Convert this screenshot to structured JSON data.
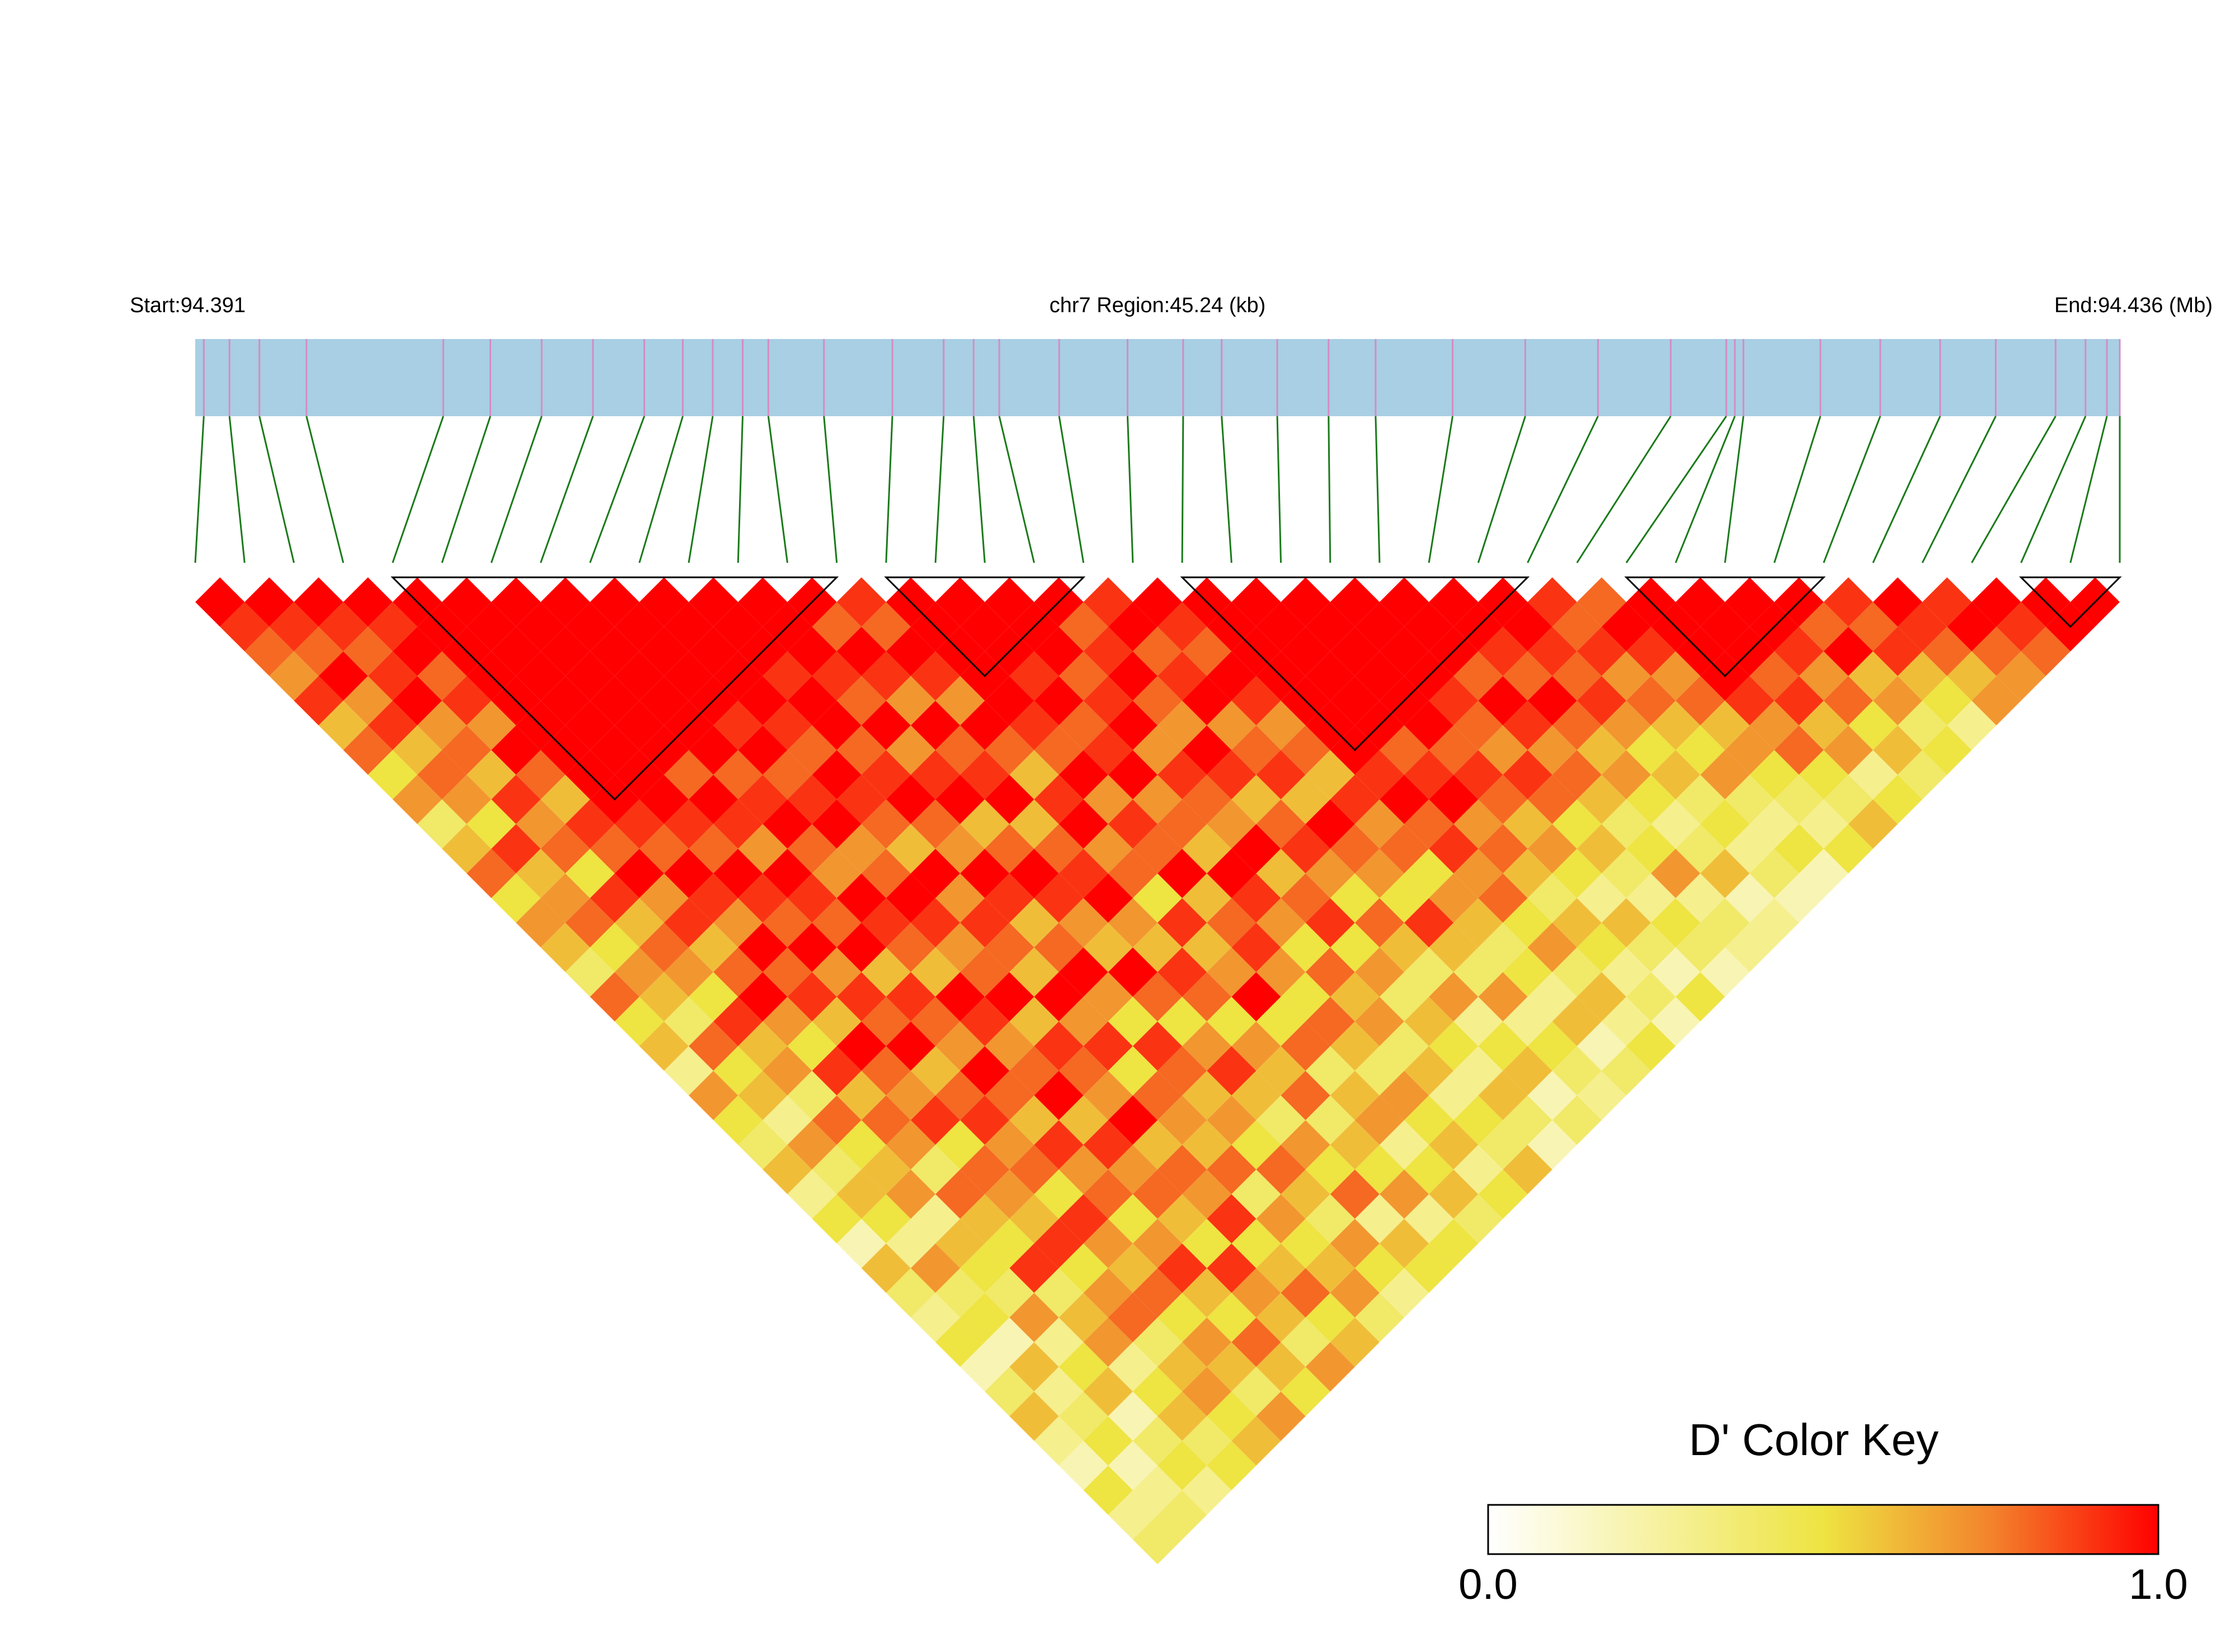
{
  "chart_data": {
    "type": "ld_heatmap",
    "start_label": "Start:94.391",
    "region_label": "chr7 Region:45.24 (kb)",
    "end_label": "End:94.436 (Mb)",
    "xlim": [
      94.391,
      94.436
    ],
    "bar_color": "#a8cfe3",
    "snp_color": "#d48cc4",
    "connector_color": "#1a7a1a",
    "snp_positions": [
      94.3912,
      94.3918,
      94.3925,
      94.3936,
      94.3968,
      94.3979,
      94.3991,
      94.4003,
      94.4015,
      94.4024,
      94.4031,
      94.4038,
      94.4044,
      94.4057,
      94.4073,
      94.4085,
      94.4092,
      94.4098,
      94.4112,
      94.4128,
      94.4141,
      94.415,
      94.4163,
      94.4175,
      94.4186,
      94.4204,
      94.4221,
      94.4238,
      94.4255,
      94.4268,
      94.427,
      94.4272,
      94.429,
      94.4304,
      94.4318,
      94.4331,
      94.4345,
      94.4352,
      94.4357,
      94.436
    ],
    "ld": [
      [
        1,
        0.9,
        0.8,
        0.7,
        0.9,
        0.6,
        0.8,
        0.5,
        0.7,
        0.4,
        0.6,
        0.8,
        0.5,
        0.7,
        0.6,
        0.4,
        0.8,
        0.5,
        0.6,
        0.3,
        0.7,
        0.5,
        0.4,
        0.6,
        0.3,
        0.5,
        0.2,
        0.6,
        0.4,
        0.3,
        0.5,
        0.2,
        0.4,
        0.6,
        0.3,
        0.2,
        0.5,
        0.3,
        0.4
      ],
      [
        1,
        0.9,
        0.8,
        1,
        0.7,
        0.9,
        0.6,
        0.8,
        0.7,
        0.5,
        0.9,
        0.6,
        0.7,
        0.8,
        0.5,
        0.7,
        0.6,
        0.4,
        0.8,
        0.5,
        0.6,
        0.3,
        0.7,
        0.4,
        0.6,
        0.5,
        0.3,
        0.7,
        0.4,
        0.5,
        0.2,
        0.6,
        0.3,
        0.4,
        0.5,
        0.2,
        0.3,
        0.4
      ],
      [
        1,
        0.9,
        0.8,
        0.9,
        1,
        0.7,
        0.8,
        0.6,
        0.9,
        0.7,
        0.8,
        0.5,
        0.9,
        0.6,
        0.8,
        0.7,
        0.5,
        0.9,
        0.6,
        0.7,
        0.4,
        0.8,
        0.5,
        0.6,
        0.7,
        0.3,
        0.6,
        0.5,
        0.4,
        0.7,
        0.3,
        0.5,
        0.6,
        0.2,
        0.4,
        0.5,
        0.3
      ],
      [
        1,
        0.9,
        1,
        0.8,
        0.9,
        0.7,
        1,
        0.8,
        0.6,
        0.9,
        0.8,
        1,
        0.7,
        0.9,
        0.6,
        0.8,
        1,
        0.7,
        0.5,
        0.9,
        0.6,
        0.8,
        0.7,
        0.4,
        0.8,
        0.6,
        0.5,
        0.9,
        0.4,
        0.6,
        0.7,
        0.3,
        0.5,
        0.6,
        0.4,
        0.5
      ],
      [
        1,
        1,
        1,
        1,
        1,
        1,
        1,
        1,
        1,
        0.9,
        0.8,
        1,
        0.9,
        0.7,
        1,
        0.8,
        0.9,
        0.6,
        1,
        0.8,
        0.7,
        0.9,
        0.5,
        0.8,
        0.7,
        0.6,
        0.9,
        0.5,
        0.7,
        0.8,
        0.4,
        0.6,
        0.7,
        0.5,
        0.6
      ],
      [
        1,
        1,
        1,
        1,
        1,
        1,
        1,
        1,
        1,
        0.9,
        0.8,
        1,
        0.9,
        0.8,
        1,
        0.7,
        0.9,
        0.8,
        1,
        0.6,
        0.8,
        0.9,
        0.7,
        0.8,
        0.5,
        0.9,
        0.7,
        0.6,
        0.8,
        0.5,
        0.7,
        0.6,
        0.4,
        0.7
      ],
      [
        1,
        1,
        1,
        1,
        1,
        1,
        1,
        0.8,
        1,
        0.9,
        0.7,
        1,
        0.9,
        0.8,
        1,
        0.6,
        0.9,
        0.8,
        0.7,
        1,
        0.8,
        0.6,
        0.9,
        0.7,
        0.8,
        0.5,
        0.7,
        0.9,
        0.6,
        0.5,
        0.8,
        0.6,
        0.5
      ],
      [
        1,
        1,
        1,
        1,
        1,
        1,
        1,
        0.8,
        0.9,
        1,
        0.8,
        0.7,
        1,
        0.9,
        0.8,
        0.6,
        1,
        0.9,
        0.7,
        0.8,
        1,
        0.6,
        0.9,
        0.7,
        0.8,
        0.6,
        0.5,
        0.9,
        0.7,
        0.6,
        0.4,
        0.7
      ],
      [
        1,
        1,
        1,
        1,
        1,
        0.9,
        1,
        0.8,
        0.9,
        1,
        0.7,
        0.8,
        1,
        0.9,
        0.7,
        0.8,
        1,
        0.6,
        0.9,
        0.8,
        0.7,
        1,
        0.6,
        0.8,
        0.7,
        0.9,
        0.5,
        0.6,
        0.8,
        0.5,
        0.6
      ],
      [
        1,
        1,
        1,
        1,
        1,
        0.9,
        0.8,
        1,
        0.9,
        0.8,
        0.6,
        1,
        0.7,
        0.9,
        0.8,
        0.6,
        1,
        0.7,
        0.9,
        0.5,
        0.8,
        0.7,
        0.6,
        0.8,
        0.4,
        0.7,
        0.5,
        0.6,
        0.7,
        0.4
      ],
      [
        1,
        1,
        1,
        0.9,
        1,
        1,
        0.8,
        0.9,
        1,
        0.8,
        0.7,
        1,
        0.9,
        0.6,
        0.8,
        1,
        0.7,
        0.5,
        0.9,
        0.8,
        0.6,
        0.7,
        0.5,
        0.8,
        0.6,
        0.4,
        0.7,
        0.5,
        0.3
      ],
      [
        1,
        1,
        1,
        0.9,
        0.8,
        1,
        0.7,
        0.9,
        1,
        0.6,
        0.8,
        1,
        0.9,
        0.7,
        0.6,
        1,
        0.8,
        0.5,
        0.7,
        0.9,
        0.6,
        0.4,
        0.7,
        0.5,
        0.8,
        0.3,
        0.6,
        0.5
      ],
      [
        1,
        0.8,
        1,
        0.9,
        0.7,
        1,
        0.8,
        0.9,
        1,
        0.6,
        0.8,
        0.9,
        1,
        0.7,
        0.6,
        0.9,
        0.8,
        0.5,
        0.7,
        0.6,
        0.8,
        0.4,
        0.6,
        0.5,
        0.7,
        0.3,
        0.5
      ],
      [
        0.9,
        0.8,
        1,
        0.9,
        0.7,
        1,
        0.8,
        0.6,
        0.9,
        1,
        0.7,
        0.8,
        0.5,
        0.9,
        0.6,
        0.7,
        1,
        0.5,
        0.8,
        0.4,
        0.6,
        0.7,
        0.3,
        0.5,
        0.6,
        0.4
      ],
      [
        1,
        1,
        1,
        1,
        1,
        0.9,
        0.8,
        1,
        0.7,
        0.9,
        0.8,
        1,
        0.6,
        0.8,
        0.9,
        0.7,
        0.5,
        0.8,
        0.6,
        0.4,
        0.7,
        0.5,
        0.6,
        0.3,
        0.5
      ],
      [
        1,
        1,
        1,
        0.9,
        1,
        0.8,
        0.9,
        1,
        0.7,
        0.8,
        0.6,
        1,
        0.9,
        0.7,
        0.5,
        0.8,
        0.6,
        0.7,
        0.4,
        0.6,
        0.3,
        0.5,
        0.4,
        0.6
      ],
      [
        1,
        1,
        1,
        0.8,
        0.9,
        1,
        0.7,
        0.9,
        0.8,
        0.7,
        1,
        0.6,
        0.8,
        0.9,
        0.5,
        0.7,
        0.4,
        0.6,
        0.5,
        0.3,
        0.6,
        0.4,
        0.2
      ],
      [
        1,
        0.8,
        0.9,
        1,
        0.8,
        0.7,
        1,
        0.9,
        0.6,
        0.8,
        0.9,
        0.7,
        0.5,
        0.8,
        0.6,
        0.4,
        0.7,
        0.3,
        0.5,
        0.6,
        0.2,
        0.4
      ],
      [
        0.9,
        1,
        0.8,
        0.9,
        1,
        0.7,
        0.8,
        0.9,
        0.6,
        1,
        0.8,
        0.7,
        0.5,
        0.9,
        0.6,
        0.4,
        0.7,
        0.3,
        0.5,
        0.4,
        0.3
      ],
      [
        1,
        0.9,
        0.8,
        1,
        0.9,
        0.7,
        0.8,
        0.6,
        0.9,
        0.7,
        0.8,
        0.5,
        0.7,
        0.6,
        0.4,
        0.5,
        0.3,
        0.6,
        0.2,
        0.4
      ],
      [
        1,
        1,
        1,
        1,
        1,
        1,
        1,
        0.9,
        1,
        0.8,
        0.9,
        0.7,
        0.8,
        0.5,
        0.7,
        0.4,
        0.6,
        0.3,
        0.5
      ],
      [
        1,
        1,
        1,
        1,
        1,
        1,
        0.8,
        0.9,
        1,
        0.7,
        0.8,
        0.6,
        0.4,
        0.6,
        0.5,
        0.3,
        0.4,
        0.2
      ],
      [
        1,
        1,
        1,
        1,
        1,
        1,
        0.8,
        0.9,
        0.8,
        0.6,
        0.7,
        0.5,
        0.3,
        0.6,
        0.4,
        0.2,
        0.5
      ],
      [
        1,
        1,
        1,
        1,
        0.9,
        0.8,
        0.7,
        0.9,
        0.8,
        0.5,
        0.6,
        0.4,
        0.3,
        0.5,
        0.4,
        0.2
      ],
      [
        1,
        1,
        1,
        0.8,
        1,
        0.9,
        0.7,
        0.8,
        0.6,
        0.4,
        0.5,
        0.7,
        0.3,
        0.4,
        0.3
      ],
      [
        1,
        1,
        0.9,
        0.8,
        1,
        0.8,
        0.6,
        0.7,
        0.5,
        0.3,
        0.4,
        0.6,
        0.2,
        0.3
      ],
      [
        1,
        1,
        0.9,
        0.8,
        0.9,
        0.7,
        0.5,
        0.6,
        0.4,
        0.5,
        0.3,
        0.4,
        0.2
      ],
      [
        0.9,
        0.8,
        0.9,
        0.7,
        0.8,
        0.6,
        0.5,
        0.7,
        0.4,
        0.3,
        0.5,
        0.2
      ],
      [
        0.8,
        1,
        0.9,
        0.7,
        0.8,
        0.6,
        0.7,
        0.5,
        0.4,
        0.3,
        0.5
      ],
      [
        1,
        1,
        1,
        1,
        0.9,
        0.7,
        0.8,
        0.5,
        0.4,
        0.6
      ],
      [
        1,
        1,
        1,
        0.8,
        0.9,
        0.6,
        0.7,
        0.3,
        0.5
      ],
      [
        1,
        1,
        0.9,
        0.7,
        0.8,
        0.5,
        0.6,
        0.4
      ],
      [
        1,
        0.8,
        1,
        0.6,
        0.7,
        0.4,
        0.5
      ],
      [
        0.9,
        0.8,
        0.9,
        0.6,
        0.5,
        0.3
      ],
      [
        1,
        0.9,
        0.8,
        0.6,
        0.7
      ],
      [
        0.9,
        1,
        0.8,
        0.7
      ],
      [
        1,
        0.9,
        0.8
      ],
      [
        1,
        1
      ],
      [
        1
      ]
    ],
    "blocks": [
      [
        4,
        13
      ],
      [
        14,
        18
      ],
      [
        20,
        27
      ],
      [
        29,
        33
      ],
      [
        37,
        39
      ]
    ],
    "block_color": "#000000",
    "color_stops": [
      {
        "value": 0,
        "color": "#ffffff"
      },
      {
        "value": 0.5,
        "color": "#eee442"
      },
      {
        "value": 0.75,
        "color": "#f3832c"
      },
      {
        "value": 1,
        "color": "#ff0000"
      }
    ],
    "legend": {
      "title": "D' Color Key",
      "range": [
        0,
        1
      ],
      "ticks": [
        {
          "value": 0,
          "label": "0.0"
        },
        {
          "value": 1,
          "label": "1.0"
        }
      ]
    }
  }
}
